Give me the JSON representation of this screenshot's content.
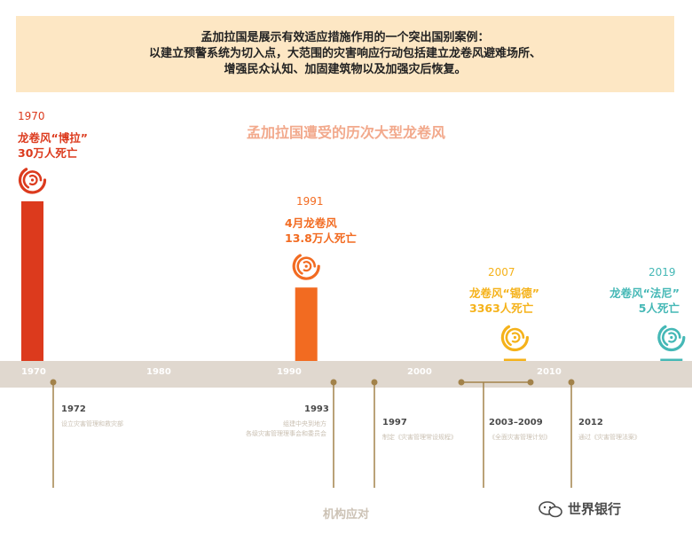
{
  "banner": {
    "line1": "孟加拉国是展示有效适应措施作用的一个突出国别案例：",
    "line2": "以建立预警系统为切入点，大范围的灾害响应行动包括建立龙卷风避难场所、",
    "line3": "增强民众认知、加固建筑物以及加强灾后恢复。"
  },
  "chart_data": {
    "type": "bar",
    "title": "孟加拉国遭受的历次大型龙卷风",
    "categories": [
      "1970",
      "1991",
      "2007",
      "2019"
    ],
    "values": [
      300000,
      138000,
      3363,
      5
    ],
    "annotations": [
      {
        "year": "1970",
        "line1": "龙卷风“博拉”",
        "line2": "30万人死亡",
        "color": "#dc3a1d"
      },
      {
        "year": "1991",
        "line1": "4月龙卷风",
        "line2": "13.8万人死亡",
        "color": "#f26b21"
      },
      {
        "year": "2007",
        "line1": "龙卷风“锡德”",
        "line2": "3363人死亡",
        "color": "#f5b21a"
      },
      {
        "year": "2019",
        "line1": "龙卷风“法尼”",
        "line2": "5人死亡",
        "color": "#45b8b6"
      }
    ],
    "axis_ticks": [
      "1970",
      "1980",
      "1990",
      "2000",
      "2010"
    ]
  },
  "events": [
    {
      "year": "1972",
      "desc": [
        "设立灾害管理和救灾部"
      ]
    },
    {
      "year": "1993",
      "desc": [
        "组建中央到地方",
        "各级灾害管理理事会和委员会"
      ]
    },
    {
      "year": "1997",
      "desc": [
        "制定《灾害管理常设规程》"
      ]
    },
    {
      "year": "2003–2009",
      "desc": [
        "《全面灾害管理计划》"
      ]
    },
    {
      "year": "2012",
      "desc": [
        "通过《灾害管理法案》"
      ]
    }
  ],
  "footer": "机构应对",
  "watermark": "世界银行",
  "colors": {
    "gold": "#a2824a",
    "band": "#e0d8cf"
  }
}
